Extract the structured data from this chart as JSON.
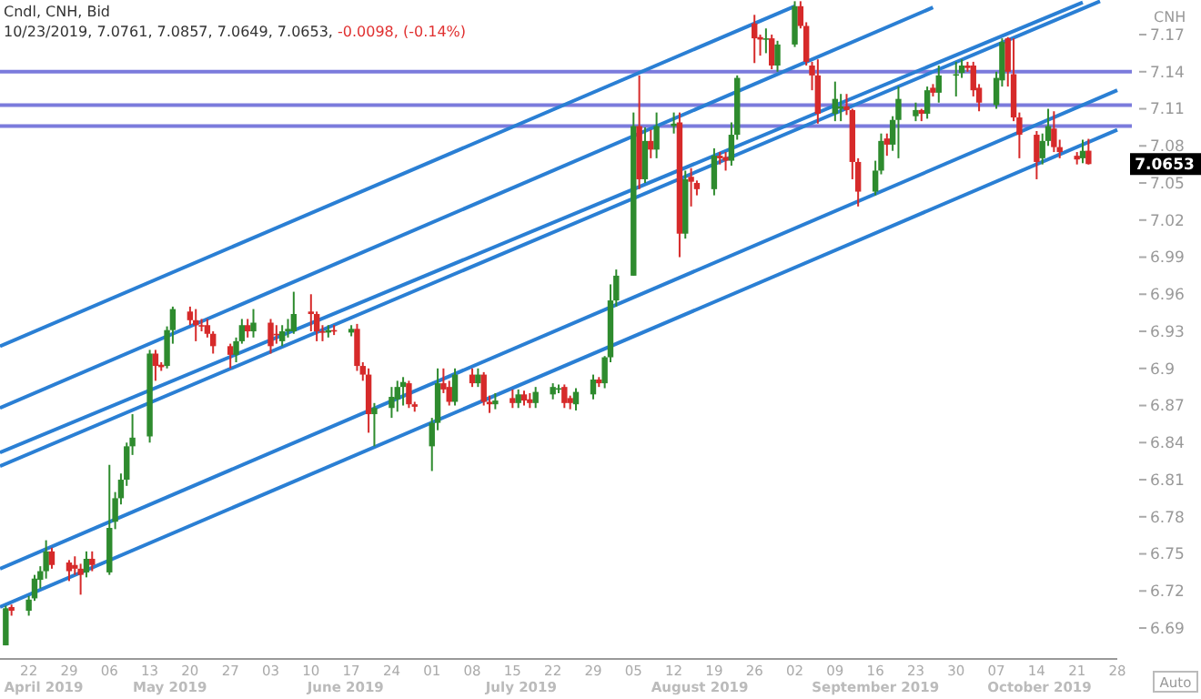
{
  "chart_data": {
    "type": "candlestick",
    "title": "Cndl, CNH, Bid",
    "subtitle": "10/23/2019, 7.0761, 7.0857, 7.0649, 7.0653,",
    "annotations": [
      "-0.0098, (-0.14%)",
      "CNH",
      "Auto",
      "7.0653",
      "April 2019",
      "May 2019",
      "June 2019",
      "July 2019",
      "August 2019",
      "September 2019",
      "October 2019"
    ],
    "xlim": [
      "2019-04-17",
      "2019-10-28"
    ],
    "xticks": [
      {
        "value": "2019-04-22",
        "label": "22"
      },
      {
        "value": "2019-04-29",
        "label": "29"
      },
      {
        "value": "2019-05-06",
        "label": "06"
      },
      {
        "value": "2019-05-13",
        "label": "13"
      },
      {
        "value": "2019-05-20",
        "label": "20"
      },
      {
        "value": "2019-05-27",
        "label": "27"
      },
      {
        "value": "2019-06-03",
        "label": "03"
      },
      {
        "value": "2019-06-10",
        "label": "10"
      },
      {
        "value": "2019-06-17",
        "label": "17"
      },
      {
        "value": "2019-06-24",
        "label": "24"
      },
      {
        "value": "2019-07-01",
        "label": "01"
      },
      {
        "value": "2019-07-08",
        "label": "08"
      },
      {
        "value": "2019-07-15",
        "label": "15"
      },
      {
        "value": "2019-07-22",
        "label": "22"
      },
      {
        "value": "2019-07-29",
        "label": "29"
      },
      {
        "value": "2019-08-05",
        "label": "05"
      },
      {
        "value": "2019-08-12",
        "label": "12"
      },
      {
        "value": "2019-08-19",
        "label": "19"
      },
      {
        "value": "2019-08-26",
        "label": "26"
      },
      {
        "value": "2019-09-02",
        "label": "02"
      },
      {
        "value": "2019-09-09",
        "label": "09"
      },
      {
        "value": "2019-09-16",
        "label": "16"
      },
      {
        "value": "2019-09-23",
        "label": "23"
      },
      {
        "value": "2019-09-30",
        "label": "30"
      },
      {
        "value": "2019-10-07",
        "label": "07"
      },
      {
        "value": "2019-10-14",
        "label": "14"
      },
      {
        "value": "2019-10-21",
        "label": "21"
      },
      {
        "value": "2019-10-28",
        "label": "28"
      }
    ],
    "ylim": [
      6.665,
      7.198
    ],
    "yticks": [
      6.69,
      6.72,
      6.75,
      6.78,
      6.81,
      6.84,
      6.87,
      6.9,
      6.93,
      6.96,
      6.99,
      7.02,
      7.05,
      7.08,
      7.11,
      7.14,
      7.17
    ],
    "ref_lines": [
      {
        "axis": "y",
        "value": 7.14,
        "color": "#7b7bdc"
      },
      {
        "axis": "y",
        "value": 7.113,
        "color": "#7b7bdc"
      },
      {
        "axis": "y",
        "value": 7.096,
        "color": "#7b7bdc"
      }
    ],
    "series": [
      {
        "x": [
          "2019-04-18",
          "2019-04-19",
          "2019-04-22",
          "2019-04-23",
          "2019-04-24",
          "2019-04-25",
          "2019-04-26",
          "2019-04-29",
          "2019-04-30",
          "2019-05-01",
          "2019-05-02",
          "2019-05-03",
          "2019-05-06",
          "2019-05-07",
          "2019-05-08",
          "2019-05-09",
          "2019-05-10",
          "2019-05-13",
          "2019-05-14",
          "2019-05-15",
          "2019-05-16",
          "2019-05-17",
          "2019-05-20",
          "2019-05-21",
          "2019-05-22",
          "2019-05-23",
          "2019-05-24",
          "2019-05-27",
          "2019-05-28",
          "2019-05-29",
          "2019-05-30",
          "2019-05-31",
          "2019-06-03",
          "2019-06-04",
          "2019-06-05",
          "2019-06-06",
          "2019-06-07",
          "2019-06-10",
          "2019-06-11",
          "2019-06-12",
          "2019-06-13",
          "2019-06-14",
          "2019-06-17",
          "2019-06-18",
          "2019-06-19",
          "2019-06-20",
          "2019-06-21",
          "2019-06-24",
          "2019-06-25",
          "2019-06-26",
          "2019-06-27",
          "2019-06-28",
          "2019-07-01",
          "2019-07-02",
          "2019-07-03",
          "2019-07-04",
          "2019-07-05",
          "2019-07-08",
          "2019-07-09",
          "2019-07-10",
          "2019-07-11",
          "2019-07-12",
          "2019-07-15",
          "2019-07-16",
          "2019-07-17",
          "2019-07-18",
          "2019-07-19",
          "2019-07-22",
          "2019-07-23",
          "2019-07-24",
          "2019-07-25",
          "2019-07-26",
          "2019-07-29",
          "2019-07-30",
          "2019-07-31",
          "2019-08-01",
          "2019-08-02",
          "2019-08-05",
          "2019-08-06",
          "2019-08-07",
          "2019-08-08",
          "2019-08-09",
          "2019-08-12",
          "2019-08-13",
          "2019-08-14",
          "2019-08-15",
          "2019-08-16",
          "2019-08-19",
          "2019-08-20",
          "2019-08-21",
          "2019-08-22",
          "2019-08-23",
          "2019-08-26",
          "2019-08-27",
          "2019-08-28",
          "2019-08-29",
          "2019-08-30",
          "2019-09-02",
          "2019-09-03",
          "2019-09-04",
          "2019-09-05",
          "2019-09-06",
          "2019-09-09",
          "2019-09-10",
          "2019-09-11",
          "2019-09-12",
          "2019-09-13",
          "2019-09-16",
          "2019-09-17",
          "2019-09-18",
          "2019-09-19",
          "2019-09-20",
          "2019-09-23",
          "2019-09-24",
          "2019-09-25",
          "2019-09-26",
          "2019-09-27",
          "2019-09-30",
          "2019-10-01",
          "2019-10-02",
          "2019-10-03",
          "2019-10-04",
          "2019-10-07",
          "2019-10-08",
          "2019-10-09",
          "2019-10-10",
          "2019-10-11",
          "2019-10-14",
          "2019-10-15",
          "2019-10-16",
          "2019-10-17",
          "2019-10-18",
          "2019-10-21",
          "2019-10-22",
          "2019-10-23"
        ],
        "ohlc": [
          [
            6.676,
            6.708,
            6.676,
            6.706
          ],
          [
            6.707,
            6.709,
            6.7,
            6.704
          ],
          [
            6.704,
            6.716,
            6.7,
            6.713
          ],
          [
            6.714,
            6.733,
            6.712,
            6.73
          ],
          [
            6.729,
            6.74,
            6.722,
            6.736
          ],
          [
            6.736,
            6.761,
            6.73,
            6.752
          ],
          [
            6.752,
            6.755,
            6.738,
            6.741
          ],
          [
            6.743,
            6.745,
            6.728,
            6.736
          ],
          [
            6.741,
            6.748,
            6.733,
            6.738
          ],
          [
            6.738,
            6.742,
            6.717,
            6.733
          ],
          [
            6.735,
            6.752,
            6.731,
            6.746
          ],
          [
            6.746,
            6.752,
            6.736,
            6.741
          ],
          [
            6.735,
            6.822,
            6.733,
            6.771
          ],
          [
            6.776,
            6.8,
            6.77,
            6.795
          ],
          [
            6.795,
            6.815,
            6.79,
            6.81
          ],
          [
            6.81,
            6.84,
            6.805,
            6.837
          ],
          [
            6.837,
            6.863,
            6.83,
            6.844
          ],
          [
            6.845,
            6.915,
            6.84,
            6.912
          ],
          [
            6.912,
            6.915,
            6.89,
            6.902
          ],
          [
            6.903,
            6.905,
            6.898,
            6.901
          ],
          [
            6.902,
            6.934,
            6.9,
            6.931
          ],
          [
            6.931,
            6.95,
            6.92,
            6.948
          ],
          [
            6.946,
            6.95,
            6.935,
            6.939
          ],
          [
            6.939,
            6.948,
            6.922,
            6.935
          ],
          [
            6.935,
            6.94,
            6.93,
            6.934
          ],
          [
            6.935,
            6.94,
            6.925,
            6.928
          ],
          [
            6.928,
            6.93,
            6.912,
            6.918
          ],
          [
            6.918,
            6.92,
            6.9,
            6.911
          ],
          [
            6.911,
            6.925,
            6.905,
            6.922
          ],
          [
            6.922,
            6.94,
            6.92,
            6.935
          ],
          [
            6.935,
            6.94,
            6.925,
            6.93
          ],
          [
            6.93,
            6.948,
            6.925,
            6.937
          ],
          [
            6.937,
            6.94,
            6.912,
            6.918
          ],
          [
            6.928,
            6.935,
            6.92,
            6.927
          ],
          [
            6.922,
            6.935,
            6.918,
            6.93
          ],
          [
            6.93,
            6.94,
            6.925,
            6.932
          ],
          [
            6.93,
            6.962,
            6.928,
            6.944
          ],
          [
            6.946,
            6.96,
            6.93,
            6.944
          ],
          [
            6.944,
            6.946,
            6.922,
            6.93
          ],
          [
            6.93,
            6.935,
            6.922,
            6.929
          ],
          [
            6.929,
            6.935,
            6.925,
            6.931
          ],
          [
            6.931,
            6.935,
            6.927,
            6.93
          ],
          [
            6.929,
            6.935,
            6.926,
            6.932
          ],
          [
            6.932,
            6.936,
            6.898,
            6.902
          ],
          [
            6.902,
            6.905,
            6.89,
            6.895
          ],
          [
            6.895,
            6.9,
            6.848,
            6.863
          ],
          [
            6.863,
            6.872,
            6.837,
            6.868
          ],
          [
            6.868,
            6.885,
            6.86,
            6.877
          ],
          [
            6.875,
            6.89,
            6.865,
            6.885
          ],
          [
            6.885,
            6.893,
            6.87,
            6.889
          ],
          [
            6.888,
            6.89,
            6.868,
            6.871
          ],
          [
            6.871,
            6.873,
            6.865,
            6.869
          ],
          [
            6.837,
            6.86,
            6.817,
            6.856
          ],
          [
            6.856,
            6.9,
            6.85,
            6.888
          ],
          [
            6.888,
            6.9,
            6.88,
            6.883
          ],
          [
            6.885,
            6.89,
            6.87,
            6.873
          ],
          [
            6.873,
            6.9,
            6.87,
            6.895
          ],
          [
            6.895,
            6.9,
            6.885,
            6.888
          ],
          [
            6.888,
            6.9,
            6.885,
            6.895
          ],
          [
            6.895,
            6.897,
            6.87,
            6.873
          ],
          [
            6.873,
            6.878,
            6.864,
            6.871
          ],
          [
            6.871,
            6.88,
            6.867,
            6.874
          ],
          [
            6.876,
            6.883,
            6.868,
            6.872
          ],
          [
            6.872,
            6.883,
            6.868,
            6.879
          ],
          [
            6.879,
            6.882,
            6.87,
            6.874
          ],
          [
            6.875,
            6.88,
            6.868,
            6.872
          ],
          [
            6.872,
            6.885,
            6.868,
            6.881
          ],
          [
            6.879,
            6.888,
            6.875,
            6.885
          ],
          [
            6.883,
            6.887,
            6.88,
            6.884
          ],
          [
            6.885,
            6.887,
            6.868,
            6.872
          ],
          [
            6.876,
            6.878,
            6.867,
            6.872
          ],
          [
            6.871,
            6.884,
            6.866,
            6.881
          ],
          [
            6.879,
            6.895,
            6.875,
            6.891
          ],
          [
            6.891,
            6.893,
            6.885,
            6.888
          ],
          [
            6.888,
            6.91,
            6.884,
            6.909
          ],
          [
            6.909,
            6.968,
            6.905,
            6.955
          ],
          [
            6.955,
            6.98,
            6.95,
            6.975
          ],
          [
            6.975,
            7.107,
            6.975,
            7.096
          ],
          [
            7.096,
            7.137,
            7.045,
            7.053
          ],
          [
            7.053,
            7.095,
            7.05,
            7.084
          ],
          [
            7.084,
            7.093,
            7.07,
            7.077
          ],
          [
            7.077,
            7.107,
            7.07,
            7.096
          ],
          [
            7.096,
            7.107,
            7.09,
            7.098
          ],
          [
            7.099,
            7.107,
            6.99,
            7.009
          ],
          [
            7.009,
            7.06,
            7.005,
            7.053
          ],
          [
            7.055,
            7.062,
            7.031,
            7.051
          ],
          [
            7.05,
            7.052,
            7.04,
            7.045
          ],
          [
            7.045,
            7.078,
            7.04,
            7.072
          ],
          [
            7.072,
            7.075,
            7.065,
            7.07
          ],
          [
            7.071,
            7.075,
            7.06,
            7.068
          ],
          [
            7.068,
            7.099,
            7.064,
            7.089
          ],
          [
            7.089,
            7.137,
            7.085,
            7.135
          ],
          [
            7.179,
            7.186,
            7.147,
            7.167
          ],
          [
            7.168,
            7.17,
            7.153,
            7.166
          ],
          [
            7.166,
            7.175,
            7.155,
            7.167
          ],
          [
            7.167,
            7.17,
            7.142,
            7.145
          ],
          [
            7.145,
            7.165,
            7.14,
            7.162
          ],
          [
            7.162,
            7.197,
            7.16,
            7.193
          ],
          [
            7.193,
            7.197,
            7.175,
            7.177
          ],
          [
            7.177,
            7.18,
            7.145,
            7.148
          ],
          [
            7.145,
            7.148,
            7.125,
            7.137
          ],
          [
            7.137,
            7.15,
            7.098,
            7.106
          ],
          [
            7.106,
            7.132,
            7.1,
            7.118
          ],
          [
            7.11,
            7.122,
            7.1,
            7.112
          ],
          [
            7.112,
            7.122,
            7.105,
            7.109
          ],
          [
            7.109,
            7.11,
            7.053,
            7.067
          ],
          [
            7.067,
            7.07,
            7.031,
            7.043
          ],
          [
            7.043,
            7.068,
            7.04,
            7.06
          ],
          [
            7.06,
            7.09,
            7.057,
            7.084
          ],
          [
            7.086,
            7.09,
            7.072,
            7.081
          ],
          [
            7.081,
            7.104,
            7.076,
            7.101
          ],
          [
            7.101,
            7.128,
            7.07,
            7.118
          ],
          [
            7.104,
            7.115,
            7.1,
            7.109
          ],
          [
            7.109,
            7.11,
            7.1,
            7.106
          ],
          [
            7.106,
            7.128,
            7.102,
            7.125
          ],
          [
            7.127,
            7.13,
            7.12,
            7.123
          ],
          [
            7.123,
            7.145,
            7.115,
            7.137
          ],
          [
            7.137,
            7.148,
            7.12,
            7.138
          ],
          [
            7.139,
            7.15,
            7.135,
            7.145
          ],
          [
            7.145,
            7.148,
            7.14,
            7.143
          ],
          [
            7.145,
            7.148,
            7.12,
            7.125
          ],
          [
            7.127,
            7.13,
            7.108,
            7.115
          ],
          [
            7.113,
            7.14,
            7.11,
            7.135
          ],
          [
            7.133,
            7.167,
            7.128,
            7.164
          ],
          [
            7.167,
            7.168,
            7.128,
            7.14
          ],
          [
            7.138,
            7.167,
            7.1,
            7.103
          ],
          [
            7.103,
            7.107,
            7.07,
            7.089
          ],
          [
            7.089,
            7.092,
            7.053,
            7.067
          ],
          [
            7.07,
            7.09,
            7.065,
            7.084
          ],
          [
            7.084,
            7.11,
            7.08,
            7.096
          ],
          [
            7.094,
            7.108,
            7.075,
            7.079
          ],
          [
            7.079,
            7.085,
            7.07,
            7.075
          ],
          [
            7.072,
            7.075,
            7.065,
            7.069
          ],
          [
            7.07,
            7.085,
            7.066,
            7.076
          ],
          [
            7.0761,
            7.0857,
            7.0649,
            7.0653
          ]
        ],
        "colors": [
          "#2e8b2e",
          "#d62a2a",
          "#2e8b2e",
          "#2e8b2e",
          "#2e8b2e",
          "#2e8b2e",
          "#d62a2a",
          "#d62a2a",
          "#d62a2a",
          "#d62a2a",
          "#2e8b2e",
          "#d62a2a",
          "#2e8b2e",
          "#2e8b2e",
          "#2e8b2e",
          "#2e8b2e",
          "#2e8b2e",
          "#2e8b2e",
          "#d62a2a",
          "#d62a2a",
          "#2e8b2e",
          "#2e8b2e",
          "#d62a2a",
          "#d62a2a",
          "#d62a2a",
          "#d62a2a",
          "#d62a2a",
          "#d62a2a",
          "#2e8b2e",
          "#2e8b2e",
          "#d62a2a",
          "#2e8b2e",
          "#d62a2a",
          "#d62a2a",
          "#2e8b2e",
          "#2e8b2e",
          "#2e8b2e",
          "#d62a2a",
          "#d62a2a",
          "#d62a2a",
          "#2e8b2e",
          "#d62a2a",
          "#2e8b2e",
          "#d62a2a",
          "#d62a2a",
          "#d62a2a",
          "#2e8b2e",
          "#2e8b2e",
          "#2e8b2e",
          "#2e8b2e",
          "#d62a2a",
          "#d62a2a",
          "#2e8b2e",
          "#2e8b2e",
          "#d62a2a",
          "#d62a2a",
          "#2e8b2e",
          "#d62a2a",
          "#2e8b2e",
          "#d62a2a",
          "#d62a2a",
          "#2e8b2e",
          "#d62a2a",
          "#2e8b2e",
          "#d62a2a",
          "#d62a2a",
          "#2e8b2e",
          "#2e8b2e",
          "#2e8b2e",
          "#d62a2a",
          "#d62a2a",
          "#2e8b2e",
          "#2e8b2e",
          "#d62a2a",
          "#2e8b2e",
          "#2e8b2e",
          "#2e8b2e",
          "#2e8b2e",
          "#d62a2a",
          "#2e8b2e",
          "#d62a2a",
          "#2e8b2e",
          "#2e8b2e",
          "#d62a2a",
          "#2e8b2e",
          "#d62a2a",
          "#d62a2a",
          "#2e8b2e",
          "#d62a2a",
          "#d62a2a",
          "#2e8b2e",
          "#2e8b2e",
          "#d62a2a",
          "#d62a2a",
          "#2e8b2e",
          "#d62a2a",
          "#2e8b2e",
          "#2e8b2e",
          "#d62a2a",
          "#d62a2a",
          "#d62a2a",
          "#d62a2a",
          "#2e8b2e",
          "#2e8b2e",
          "#d62a2a",
          "#d62a2a",
          "#d62a2a",
          "#2e8b2e",
          "#2e8b2e",
          "#d62a2a",
          "#2e8b2e",
          "#2e8b2e",
          "#2e8b2e",
          "#d62a2a",
          "#2e8b2e",
          "#d62a2a",
          "#2e8b2e",
          "#2e8b2e",
          "#2e8b2e",
          "#d62a2a",
          "#d62a2a",
          "#d62a2a",
          "#2e8b2e",
          "#2e8b2e",
          "#d62a2a",
          "#d62a2a",
          "#d62a2a",
          "#d62a2a",
          "#2e8b2e",
          "#2e8b2e",
          "#d62a2a",
          "#d62a2a",
          "#d62a2a",
          "#2e8b2e",
          "#d62a2a"
        ]
      },
      {
        "type": "line",
        "color": "#2a7fd4",
        "x": [
          "2019-04-17",
          "2019-09-02"
        ],
        "values": [
          6.918,
          7.193
        ]
      },
      {
        "type": "line",
        "color": "#2a7fd4",
        "x": [
          "2019-04-17",
          "2019-09-26"
        ],
        "values": [
          6.868,
          7.192
        ]
      },
      {
        "type": "line",
        "color": "#2a7fd4",
        "x": [
          "2019-04-17",
          "2019-10-22"
        ],
        "values": [
          6.832,
          7.196
        ]
      },
      {
        "type": "line",
        "color": "#2a7fd4",
        "x": [
          "2019-04-17",
          "2019-10-25"
        ],
        "values": [
          6.821,
          7.197
        ]
      },
      {
        "type": "line",
        "color": "#2a7fd4",
        "x": [
          "2019-04-17",
          "2019-10-28"
        ],
        "values": [
          6.738,
          7.125
        ]
      },
      {
        "type": "line",
        "color": "#2a7fd4",
        "x": [
          "2019-04-17",
          "2019-10-28"
        ],
        "values": [
          6.707,
          7.093
        ]
      }
    ]
  }
}
